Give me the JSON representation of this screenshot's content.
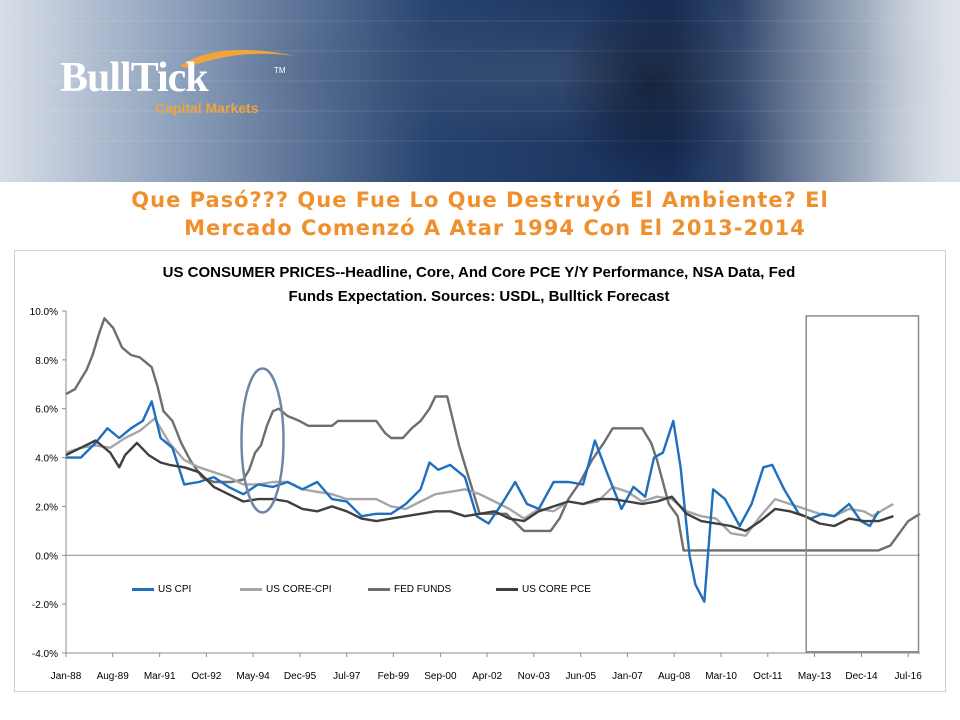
{
  "header": {
    "logo_text": "BullTick",
    "logo_tm": "TM",
    "logo_subtitle": "Capital Markets",
    "colors": {
      "brand_orange": "#f0902c",
      "banner_blue": "#1e3a66"
    }
  },
  "slide": {
    "title_line1": "Que Pasó??? Que Fue Lo Que Destruyó El Ambiente? El",
    "title_line2": "Mercado Comenzó A Atar 1994 Con El 2013-2014"
  },
  "chart_data": {
    "type": "line",
    "title_line1": "US CONSUMER PRICES--Headline, Core, And Core PCE Y/Y Performance, NSA Data, Fed",
    "title_line2": "Funds Expectation. Sources: USDL, Bulltick Forecast",
    "xlabel": "",
    "ylabel": "",
    "x_range": [
      1988.0,
      2016.9
    ],
    "ylim": [
      -4.0,
      10.0
    ],
    "y_ticks": [
      "10.0%",
      "8.0%",
      "6.0%",
      "4.0%",
      "2.0%",
      "0.0%",
      "-2.0%",
      "-4.0%"
    ],
    "y_tick_values": [
      10,
      8,
      6,
      4,
      2,
      0,
      -2,
      -4
    ],
    "x_ticks": [
      "Jan-88",
      "Aug-89",
      "Mar-91",
      "Oct-92",
      "May-94",
      "Dec-95",
      "Jul-97",
      "Feb-99",
      "Sep-00",
      "Apr-02",
      "Nov-03",
      "Jun-05",
      "Jan-07",
      "Aug-08",
      "Mar-10",
      "Oct-11",
      "May-13",
      "Dec-14",
      "Jul-16"
    ],
    "x_tick_values": [
      1988.0,
      1989.58,
      1991.17,
      1992.75,
      1994.33,
      1995.92,
      1997.5,
      1999.08,
      2000.67,
      2002.25,
      2003.83,
      2005.42,
      2007.0,
      2008.58,
      2010.17,
      2011.75,
      2013.33,
      2014.92,
      2016.5
    ],
    "legend_position": "bottom",
    "grid": false,
    "series": [
      {
        "name": "US CPI",
        "color": "#1f6fbf",
        "x": [
          1988.0,
          1988.5,
          1989.0,
          1989.4,
          1989.8,
          1990.2,
          1990.6,
          1990.9,
          1991.2,
          1991.6,
          1992.0,
          1992.5,
          1993.0,
          1993.5,
          1994.0,
          1994.5,
          1995.0,
          1995.5,
          1996.0,
          1996.5,
          1997.0,
          1997.5,
          1998.0,
          1998.5,
          1999.0,
          1999.5,
          2000.0,
          2000.3,
          2000.6,
          2001.0,
          2001.5,
          2001.9,
          2002.3,
          2002.8,
          2003.2,
          2003.6,
          2004.0,
          2004.5,
          2005.0,
          2005.5,
          2005.9,
          2006.3,
          2006.8,
          2007.2,
          2007.6,
          2007.9,
          2008.2,
          2008.55,
          2008.8,
          2009.1,
          2009.3,
          2009.6,
          2009.9,
          2010.3,
          2010.8,
          2011.2,
          2011.6,
          2011.9,
          2012.3,
          2012.8,
          2013.2,
          2013.6,
          2014.0,
          2014.5,
          2014.9,
          2015.2,
          2015.5
        ],
        "values": [
          4.0,
          4.0,
          4.6,
          5.2,
          4.8,
          5.2,
          5.5,
          6.3,
          4.8,
          4.4,
          2.9,
          3.0,
          3.2,
          2.8,
          2.5,
          2.9,
          2.8,
          3.0,
          2.7,
          3.0,
          2.3,
          2.2,
          1.6,
          1.7,
          1.7,
          2.1,
          2.7,
          3.8,
          3.5,
          3.7,
          3.2,
          1.6,
          1.3,
          2.2,
          3.0,
          2.1,
          1.9,
          3.0,
          3.0,
          2.9,
          4.7,
          3.4,
          1.9,
          2.8,
          2.4,
          4.0,
          4.2,
          5.5,
          3.6,
          0.0,
          -1.2,
          -1.9,
          2.7,
          2.3,
          1.2,
          2.1,
          3.6,
          3.7,
          2.7,
          1.7,
          1.5,
          1.7,
          1.6,
          2.1,
          1.4,
          1.2,
          1.8
        ]
      },
      {
        "name": "US CORE-CPI",
        "color": "#a6a6a6",
        "x": [
          1988.0,
          1988.5,
          1989.0,
          1989.5,
          1990.0,
          1990.5,
          1991.0,
          1991.5,
          1992.0,
          1992.5,
          1993.0,
          1993.5,
          1994.0,
          1994.5,
          1995.0,
          1995.5,
          1996.0,
          1996.5,
          1997.0,
          1997.5,
          1998.0,
          1998.5,
          1999.0,
          1999.5,
          2000.0,
          2000.5,
          2001.0,
          2001.5,
          2002.0,
          2002.5,
          2003.0,
          2003.5,
          2004.0,
          2004.5,
          2005.0,
          2005.5,
          2006.0,
          2006.5,
          2007.0,
          2007.5,
          2008.0,
          2008.5,
          2009.0,
          2009.5,
          2010.0,
          2010.5,
          2011.0,
          2011.5,
          2012.0,
          2012.5,
          2013.0,
          2013.5,
          2014.0,
          2014.5,
          2015.0,
          2015.3,
          2015.7,
          2016.0
        ],
        "values": [
          4.2,
          4.4,
          4.5,
          4.4,
          4.8,
          5.1,
          5.6,
          4.6,
          3.9,
          3.6,
          3.4,
          3.2,
          2.9,
          2.9,
          3.0,
          3.0,
          2.7,
          2.6,
          2.5,
          2.3,
          2.3,
          2.3,
          2.0,
          1.9,
          2.2,
          2.5,
          2.6,
          2.7,
          2.5,
          2.2,
          1.9,
          1.5,
          1.9,
          1.8,
          2.2,
          2.1,
          2.2,
          2.8,
          2.6,
          2.2,
          2.4,
          2.3,
          1.8,
          1.6,
          1.5,
          0.9,
          0.8,
          1.6,
          2.3,
          2.1,
          1.9,
          1.7,
          1.6,
          1.9,
          1.8,
          1.6,
          1.9,
          2.1
        ]
      },
      {
        "name": "FED FUNDS",
        "color": "#6e6e6e",
        "x": [
          1988.0,
          1988.3,
          1988.7,
          1988.9,
          1989.1,
          1989.3,
          1989.6,
          1989.9,
          1990.2,
          1990.5,
          1990.9,
          1991.1,
          1991.3,
          1991.6,
          1991.9,
          1992.2,
          1992.6,
          1993.0,
          1993.6,
          1994.0,
          1994.2,
          1994.4,
          1994.6,
          1994.8,
          1995.0,
          1995.2,
          1995.5,
          1995.9,
          1996.2,
          1996.6,
          1997.0,
          1997.2,
          1997.5,
          1998.0,
          1998.5,
          1998.8,
          1999.0,
          1999.4,
          1999.7,
          2000.0,
          2000.3,
          2000.5,
          2000.9,
          2001.1,
          2001.3,
          2001.5,
          2001.8,
          2002.0,
          2002.9,
          2003.5,
          2004.4,
          2004.7,
          2005.0,
          2005.4,
          2005.8,
          2006.2,
          2006.5,
          2007.0,
          2007.5,
          2007.8,
          2008.0,
          2008.2,
          2008.4,
          2008.7,
          2008.9,
          2009.0,
          2010.0,
          2011.0,
          2012.0,
          2013.0,
          2014.0,
          2015.0,
          2015.5,
          2015.9,
          2016.2,
          2016.5,
          2016.9
        ],
        "values": [
          6.6,
          6.8,
          7.6,
          8.2,
          9.0,
          9.7,
          9.3,
          8.5,
          8.2,
          8.1,
          7.7,
          6.9,
          5.9,
          5.5,
          4.6,
          3.9,
          3.2,
          3.0,
          3.0,
          3.1,
          3.5,
          4.2,
          4.5,
          5.3,
          5.9,
          6.0,
          5.7,
          5.5,
          5.3,
          5.3,
          5.3,
          5.5,
          5.5,
          5.5,
          5.5,
          5.0,
          4.8,
          4.8,
          5.2,
          5.5,
          6.0,
          6.5,
          6.5,
          5.5,
          4.5,
          3.7,
          2.5,
          1.7,
          1.7,
          1.0,
          1.0,
          1.5,
          2.3,
          3.0,
          3.9,
          4.6,
          5.2,
          5.2,
          5.2,
          4.6,
          3.9,
          3.0,
          2.1,
          1.6,
          0.2,
          0.2,
          0.2,
          0.2,
          0.2,
          0.2,
          0.2,
          0.2,
          0.2,
          0.4,
          0.9,
          1.4,
          1.7
        ]
      },
      {
        "name": "US CORE PCE",
        "color": "#3f3f3f",
        "x": [
          1988.0,
          1988.5,
          1989.0,
          1989.5,
          1989.8,
          1990.0,
          1990.4,
          1990.8,
          1991.2,
          1991.5,
          1992.0,
          1992.5,
          1993.0,
          1993.5,
          1994.0,
          1994.5,
          1995.0,
          1995.5,
          1996.0,
          1996.5,
          1997.0,
          1997.5,
          1998.0,
          1998.5,
          1999.0,
          1999.5,
          2000.0,
          2000.5,
          2001.0,
          2001.5,
          2002.0,
          2002.5,
          2003.0,
          2003.5,
          2004.0,
          2004.5,
          2005.0,
          2005.5,
          2006.0,
          2006.5,
          2007.0,
          2007.5,
          2008.0,
          2008.5,
          2009.0,
          2009.5,
          2010.0,
          2010.5,
          2011.0,
          2011.5,
          2012.0,
          2012.5,
          2013.0,
          2013.5,
          2014.0,
          2014.5,
          2015.0,
          2015.5,
          2016.0
        ],
        "values": [
          4.1,
          4.4,
          4.7,
          4.2,
          3.6,
          4.1,
          4.6,
          4.1,
          3.8,
          3.7,
          3.6,
          3.4,
          2.8,
          2.5,
          2.2,
          2.3,
          2.3,
          2.2,
          1.9,
          1.8,
          2.0,
          1.8,
          1.5,
          1.4,
          1.5,
          1.6,
          1.7,
          1.8,
          1.8,
          1.6,
          1.7,
          1.8,
          1.5,
          1.4,
          1.8,
          2.0,
          2.2,
          2.1,
          2.3,
          2.3,
          2.2,
          2.1,
          2.2,
          2.4,
          1.7,
          1.4,
          1.3,
          1.2,
          1.0,
          1.4,
          1.9,
          1.8,
          1.6,
          1.3,
          1.2,
          1.5,
          1.4,
          1.4,
          1.6
        ]
      }
    ]
  }
}
